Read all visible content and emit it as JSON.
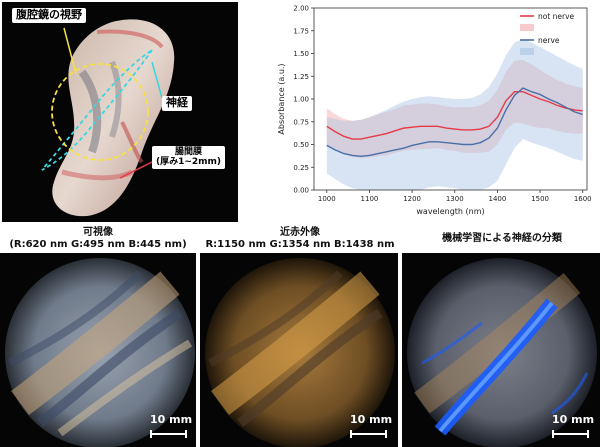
{
  "specimen": {
    "label_view": "腹腔鏡の視野",
    "label_nerve": "神経",
    "label_mesentery_line1": "腸間膜",
    "label_mesentery_line2": "(厚み1~2mm)"
  },
  "chart_data": {
    "type": "line",
    "xlabel": "wavelength (nm)",
    "ylabel": "Absorbance (a.u.)",
    "xlim": [
      970,
      1610
    ],
    "ylim": [
      0.0,
      2.0
    ],
    "xticks": [
      1000,
      1100,
      1200,
      1300,
      1400,
      1500,
      1600
    ],
    "yticks": [
      0.0,
      0.25,
      0.5,
      0.75,
      1.0,
      1.25,
      1.5,
      1.75,
      2.0
    ],
    "ytick_labels": [
      "0.00",
      "0.25",
      "0.50",
      "0.75",
      "1.00",
      "1.25",
      "1.50",
      "1.75",
      "2.00"
    ],
    "legend_position": "top-right",
    "legend_labels": [
      "not nerve",
      "",
      "nerve",
      ""
    ],
    "x": [
      1000,
      1020,
      1040,
      1060,
      1080,
      1100,
      1120,
      1140,
      1160,
      1180,
      1200,
      1220,
      1240,
      1260,
      1280,
      1300,
      1320,
      1340,
      1360,
      1380,
      1400,
      1420,
      1440,
      1460,
      1480,
      1500,
      1520,
      1540,
      1560,
      1580,
      1600
    ],
    "series": [
      {
        "name": "not nerve",
        "color": "#e63946",
        "band_color": "#f4a6a8",
        "values": [
          0.7,
          0.64,
          0.59,
          0.56,
          0.56,
          0.58,
          0.6,
          0.62,
          0.65,
          0.68,
          0.69,
          0.7,
          0.7,
          0.7,
          0.68,
          0.67,
          0.66,
          0.66,
          0.67,
          0.7,
          0.8,
          0.98,
          1.08,
          1.08,
          1.04,
          1.0,
          0.97,
          0.93,
          0.9,
          0.88,
          0.87
        ],
        "band_upper": [
          0.9,
          0.83,
          0.78,
          0.76,
          0.77,
          0.8,
          0.83,
          0.86,
          0.89,
          0.93,
          0.94,
          0.95,
          0.95,
          0.94,
          0.92,
          0.91,
          0.91,
          0.91,
          0.93,
          0.98,
          1.1,
          1.3,
          1.42,
          1.43,
          1.38,
          1.32,
          1.26,
          1.21,
          1.17,
          1.14,
          1.12
        ],
        "band_lower": [
          0.5,
          0.45,
          0.4,
          0.36,
          0.35,
          0.36,
          0.37,
          0.38,
          0.41,
          0.43,
          0.44,
          0.45,
          0.45,
          0.46,
          0.44,
          0.43,
          0.41,
          0.41,
          0.41,
          0.42,
          0.5,
          0.66,
          0.74,
          0.73,
          0.7,
          0.68,
          0.68,
          0.65,
          0.63,
          0.62,
          0.62
        ]
      },
      {
        "name": "nerve",
        "color": "#4a6fa5",
        "band_color": "#a8c4e4",
        "values": [
          0.49,
          0.44,
          0.4,
          0.38,
          0.37,
          0.38,
          0.4,
          0.42,
          0.44,
          0.46,
          0.49,
          0.51,
          0.53,
          0.53,
          0.52,
          0.51,
          0.5,
          0.5,
          0.52,
          0.57,
          0.68,
          0.88,
          1.04,
          1.12,
          1.08,
          1.05,
          1.0,
          0.96,
          0.91,
          0.86,
          0.83
        ],
        "band_upper": [
          0.8,
          0.78,
          0.76,
          0.76,
          0.77,
          0.8,
          0.84,
          0.88,
          0.93,
          0.97,
          1.0,
          1.02,
          1.03,
          1.02,
          1.01,
          1.0,
          1.0,
          1.01,
          1.05,
          1.13,
          1.28,
          1.48,
          1.62,
          1.66,
          1.62,
          1.57,
          1.52,
          1.47,
          1.42,
          1.37,
          1.33
        ],
        "band_lower": [
          0.18,
          0.12,
          0.06,
          0.02,
          0.0,
          0.0,
          0.0,
          0.0,
          0.0,
          0.0,
          0.0,
          0.0,
          0.03,
          0.04,
          0.03,
          0.02,
          0.0,
          0.0,
          0.0,
          0.03,
          0.1,
          0.28,
          0.46,
          0.56,
          0.52,
          0.49,
          0.46,
          0.42,
          0.38,
          0.34,
          0.32
        ]
      }
    ]
  },
  "panels": [
    {
      "caption_line1": "可視像",
      "caption_line2": "(R:620 nm G:495 nm B:445 nm)",
      "scale_label": "10 mm"
    },
    {
      "caption_line1": "近赤外像",
      "caption_line2": "R:1150 nm G:1354 nm B:1438 nm",
      "scale_label": "10 mm"
    },
    {
      "caption_line1": "機械学習による神経の分類",
      "caption_line2": "",
      "scale_label": "10 mm"
    }
  ],
  "colors": {
    "callout_line": "#f5e142",
    "nerve_trace": "#38d6e0",
    "classified_nerve": "#1b5cff"
  }
}
